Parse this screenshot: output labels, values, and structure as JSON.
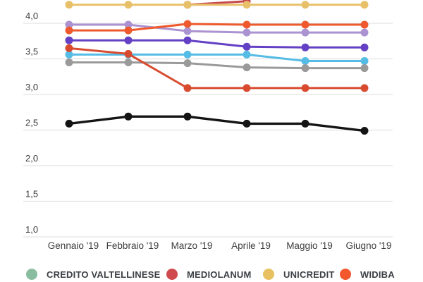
{
  "chart_data": {
    "type": "line",
    "categories": [
      "Gennaio '19",
      "Febbraio '19",
      "Marzo '19",
      "Aprile '19",
      "Maggio '19",
      "Giugno '19"
    ],
    "y_axis": {
      "tick_labels": [
        "4,0",
        "3,5",
        "3,0",
        "2,5",
        "2,0",
        "1,5",
        "1,0"
      ],
      "tick_values": [
        4.0,
        3.5,
        3.0,
        2.5,
        2.0,
        1.5,
        1.0
      ],
      "visible_range": [
        1.0,
        4.33
      ],
      "grid": true,
      "decimal_separator": ","
    },
    "series": [
      {
        "id": "series-purple-light",
        "legend_label": null,
        "color": "#ab93d1",
        "values": [
          3.98,
          3.98,
          3.89,
          3.87,
          3.87,
          3.87
        ]
      },
      {
        "id": "series-violet",
        "legend_label": null,
        "color": "#6440c4",
        "values": [
          3.76,
          3.76,
          3.76,
          3.67,
          3.66,
          3.66
        ]
      },
      {
        "id": "series-cyan",
        "legend_label": null,
        "color": "#55bce5",
        "values": [
          3.56,
          3.56,
          3.56,
          3.56,
          3.47,
          3.47
        ]
      },
      {
        "id": "series-gray",
        "legend_label": null,
        "color": "#9a9a9a",
        "values": [
          3.45,
          3.45,
          3.44,
          3.38,
          3.37,
          3.37
        ]
      },
      {
        "id": "mediolanum",
        "legend_label": "MEDIOLANUM",
        "color": "#c6494e",
        "values": [
          null,
          null,
          4.26,
          4.31,
          null,
          null
        ],
        "note_offscreen": "line continues above cropped top after Aprile"
      },
      {
        "id": "unicredit",
        "legend_label": "UNICREDIT",
        "color": "#e8c06a",
        "values": [
          4.26,
          4.26,
          4.26,
          4.26,
          4.26,
          4.26
        ]
      },
      {
        "id": "widiba",
        "legend_label": "WIDIBA",
        "color": "#ee5a2e",
        "values": [
          3.9,
          3.9,
          3.99,
          3.98,
          3.98,
          3.98
        ]
      },
      {
        "id": "series-red",
        "legend_label": null,
        "color": "#d84b2f",
        "values": [
          3.65,
          3.57,
          3.09,
          3.09,
          3.09,
          3.09
        ]
      },
      {
        "id": "series-black",
        "legend_label": null,
        "color": "#141414",
        "values": [
          2.59,
          2.69,
          2.69,
          2.59,
          2.59,
          2.49
        ]
      }
    ],
    "legend_position": "bottom"
  },
  "legend": {
    "items": [
      {
        "label": "CREDITO VALTELLINESE",
        "color": "#8abd9f"
      },
      {
        "label": "MEDIOLANUM",
        "color": "#ce4a4e"
      },
      {
        "label": "UNICREDIT",
        "color": "#e8c05f"
      },
      {
        "label": "WIDIBA",
        "color": "#f2572d"
      }
    ]
  },
  "colors": {
    "gridline": "#e3e3e3",
    "axis_text": "#3d3d3d",
    "background": "#ffffff"
  }
}
